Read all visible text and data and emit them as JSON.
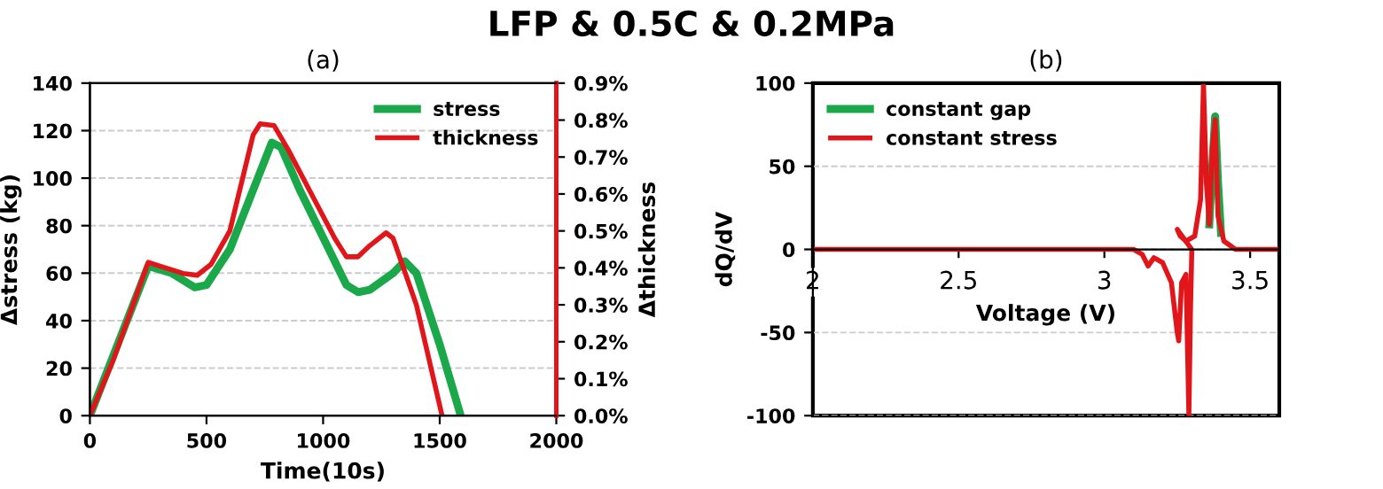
{
  "chart_data": [
    {
      "type": "line",
      "title": "LFP & 0.5C & 0.2MPa",
      "subtitle": "(a)",
      "xlabel": "Time(10s)",
      "ylabel": "Δstress (kg)",
      "y2label": "Δthickness",
      "xlim": [
        0,
        2000
      ],
      "xticks": [
        0,
        500,
        1000,
        1500,
        2000
      ],
      "ylim": [
        0,
        140
      ],
      "yticks": [
        0,
        20,
        40,
        60,
        80,
        100,
        120,
        140
      ],
      "y2lim": [
        0,
        0.9
      ],
      "y2ticks": [
        {
          "value": 0,
          "label": "0.0%"
        },
        {
          "value": 0.1,
          "label": "0.1%"
        },
        {
          "value": 0.2,
          "label": "0.2%"
        },
        {
          "value": 0.3,
          "label": "0.3%"
        },
        {
          "value": 0.4,
          "label": "0.4%"
        },
        {
          "value": 0.5,
          "label": "0.5%"
        },
        {
          "value": 0.6,
          "label": "0.6%"
        },
        {
          "value": 0.7,
          "label": "0.7%"
        },
        {
          "value": 0.8,
          "label": "0.8%"
        },
        {
          "value": 0.9,
          "label": "0.9%"
        }
      ],
      "grid": "y",
      "legend": "top right",
      "series": [
        {
          "name": "stress",
          "color": "#1aa84a",
          "x": [
            0,
            250,
            350,
            450,
            500,
            600,
            700,
            780,
            820,
            900,
            1000,
            1100,
            1150,
            1200,
            1300,
            1350,
            1400,
            1500,
            1590
          ],
          "values": [
            0,
            63,
            60,
            54,
            55,
            70,
            95,
            115,
            113,
            95,
            75,
            55,
            52,
            53,
            60,
            65,
            60,
            30,
            0
          ]
        },
        {
          "name": "thickness",
          "color": "#e0161b",
          "axis": "y2",
          "x": [
            0,
            100,
            250,
            300,
            400,
            460,
            520,
            600,
            700,
            730,
            790,
            850,
            950,
            1050,
            1100,
            1150,
            1200,
            1270,
            1300,
            1400,
            1510
          ],
          "values": [
            0,
            0.15,
            0.415,
            0.405,
            0.385,
            0.38,
            0.41,
            0.5,
            0.76,
            0.79,
            0.785,
            0.72,
            0.6,
            0.48,
            0.43,
            0.43,
            0.46,
            0.495,
            0.48,
            0.3,
            0
          ]
        }
      ]
    },
    {
      "type": "line",
      "title": "(b)",
      "xlabel": "Voltage (V)",
      "ylabel": "dQ/dV",
      "xlim": [
        2,
        3.6
      ],
      "xticks": [
        2,
        2.5,
        3,
        3.5
      ],
      "ylim": [
        -100,
        100
      ],
      "yticks": [
        -100,
        -50,
        0,
        50,
        100
      ],
      "grid": "y",
      "legend": "top left",
      "series": [
        {
          "name": "constant gap",
          "color": "#1aa84a",
          "x": [
            3.36,
            3.37,
            3.38,
            3.39,
            3.4
          ],
          "values": [
            15,
            50,
            80,
            40,
            10
          ]
        },
        {
          "name": "constant stress",
          "color": "#e0161b",
          "x": [
            2,
            3.1,
            3.13,
            3.15,
            3.17,
            3.2,
            3.23,
            3.25,
            3.255,
            3.265,
            3.28,
            3.29,
            3.295,
            3.3,
            3.25,
            3.26,
            3.28,
            3.31,
            3.33,
            3.34,
            3.35,
            3.36,
            3.37,
            3.38,
            3.39,
            3.41,
            3.45,
            3.6
          ],
          "values": [
            0,
            0,
            -3,
            -10,
            -5,
            -8,
            -20,
            -50,
            -55,
            -20,
            -15,
            -100,
            -40,
            0,
            12,
            8,
            5,
            8,
            30,
            100,
            40,
            15,
            60,
            78,
            20,
            5,
            0,
            0
          ]
        }
      ]
    }
  ]
}
